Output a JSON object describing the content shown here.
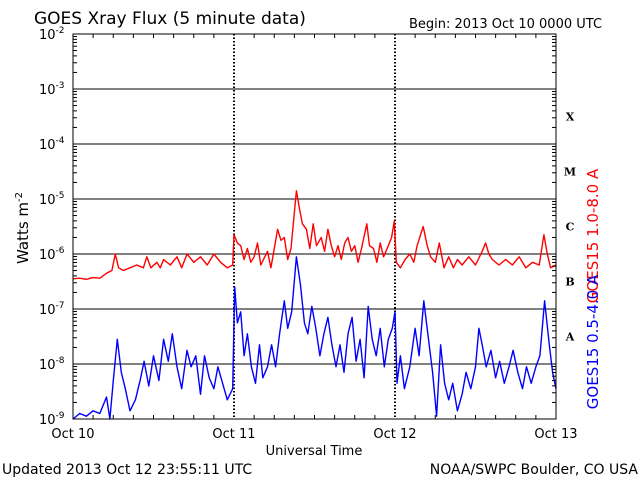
{
  "header": {
    "title": "GOES Xray Flux (5 minute data)",
    "begin": "Begin:  2013 Oct 10 0000 UTC"
  },
  "footer": {
    "updated": "Updated 2013 Oct 12 23:55:11 UTC",
    "credit": "NOAA/SWPC Boulder, CO USA"
  },
  "colors": {
    "long": "#ff0000",
    "short": "#0000ff",
    "grid": "#000000",
    "background": "#ffffff"
  },
  "chart_data": {
    "type": "line",
    "title": "GOES Xray Flux (5 minute data)",
    "xlabel": "Universal Time",
    "ylabel": "Watts m",
    "ylabel_sup": "-2",
    "yscale": "log",
    "ylim": [
      1e-09,
      0.01
    ],
    "xlim": [
      0,
      72
    ],
    "x_unit": "hours since 2013 Oct 10 0000 UTC",
    "y_ticks": [
      {
        "exp": -9,
        "label": "10",
        "sup": "-9"
      },
      {
        "exp": -8,
        "label": "10",
        "sup": "-8"
      },
      {
        "exp": -7,
        "label": "10",
        "sup": "-7"
      },
      {
        "exp": -6,
        "label": "10",
        "sup": "-6"
      },
      {
        "exp": -5,
        "label": "10",
        "sup": "-5"
      },
      {
        "exp": -4,
        "label": "10",
        "sup": "-4"
      },
      {
        "exp": -3,
        "label": "10",
        "sup": "-3"
      },
      {
        "exp": -2,
        "label": "10",
        "sup": "-2"
      }
    ],
    "x_ticks": [
      {
        "x": 0,
        "label": "Oct 10"
      },
      {
        "x": 24,
        "label": "Oct 11"
      },
      {
        "x": 48,
        "label": "Oct 12"
      },
      {
        "x": 72,
        "label": "Oct 13"
      }
    ],
    "flare_classes": [
      {
        "label": "X",
        "exp": -3.5
      },
      {
        "label": "M",
        "exp": -4.5
      },
      {
        "label": "C",
        "exp": -5.5
      },
      {
        "label": "B",
        "exp": -6.5
      },
      {
        "label": "A",
        "exp": -7.5
      }
    ],
    "grid": true,
    "series": [
      {
        "name": "GOES15 1.0-8.0 A",
        "color": "#ff0000",
        "points": [
          [
            0,
            -6.45
          ],
          [
            1,
            -6.44
          ],
          [
            2,
            -6.46
          ],
          [
            3,
            -6.43
          ],
          [
            4,
            -6.44
          ],
          [
            5,
            -6.35
          ],
          [
            5.8,
            -6.3
          ],
          [
            6.3,
            -6.0
          ],
          [
            6.8,
            -6.25
          ],
          [
            7.5,
            -6.3
          ],
          [
            8.5,
            -6.25
          ],
          [
            9.5,
            -6.2
          ],
          [
            10.5,
            -6.25
          ],
          [
            11,
            -6.05
          ],
          [
            11.6,
            -6.25
          ],
          [
            12.5,
            -6.15
          ],
          [
            13,
            -6.25
          ],
          [
            13.5,
            -6.1
          ],
          [
            14.5,
            -6.2
          ],
          [
            15.5,
            -6.05
          ],
          [
            16.2,
            -6.25
          ],
          [
            17,
            -6.0
          ],
          [
            18,
            -6.15
          ],
          [
            19,
            -6.05
          ],
          [
            20,
            -6.2
          ],
          [
            21,
            -6.0
          ],
          [
            22,
            -6.15
          ],
          [
            23,
            -6.25
          ],
          [
            23.8,
            -6.2
          ],
          [
            24,
            -5.65
          ],
          [
            24.5,
            -5.8
          ],
          [
            25,
            -5.85
          ],
          [
            25.5,
            -6.1
          ],
          [
            26,
            -5.9
          ],
          [
            26.5,
            -6.15
          ],
          [
            27,
            -6.05
          ],
          [
            27.5,
            -5.8
          ],
          [
            28,
            -6.2
          ],
          [
            29,
            -5.95
          ],
          [
            29.5,
            -6.25
          ],
          [
            30,
            -5.9
          ],
          [
            30.5,
            -5.55
          ],
          [
            31,
            -5.75
          ],
          [
            31.5,
            -5.7
          ],
          [
            32,
            -6.1
          ],
          [
            32.5,
            -5.9
          ],
          [
            33.3,
            -4.85
          ],
          [
            33.8,
            -5.2
          ],
          [
            34.2,
            -5.45
          ],
          [
            34.8,
            -5.55
          ],
          [
            35.3,
            -5.9
          ],
          [
            35.8,
            -5.45
          ],
          [
            36.3,
            -5.85
          ],
          [
            37,
            -5.7
          ],
          [
            37.5,
            -5.95
          ],
          [
            38,
            -5.55
          ],
          [
            38.5,
            -5.85
          ],
          [
            39,
            -6.05
          ],
          [
            39.5,
            -5.85
          ],
          [
            40,
            -6.1
          ],
          [
            40.5,
            -5.8
          ],
          [
            41,
            -5.7
          ],
          [
            41.5,
            -5.95
          ],
          [
            42,
            -5.85
          ],
          [
            42.5,
            -6.15
          ],
          [
            43,
            -5.9
          ],
          [
            43.8,
            -5.45
          ],
          [
            44.2,
            -5.85
          ],
          [
            44.8,
            -5.9
          ],
          [
            45.3,
            -6.15
          ],
          [
            45.8,
            -5.8
          ],
          [
            46.3,
            -6.05
          ],
          [
            47,
            -5.85
          ],
          [
            47.5,
            -5.7
          ],
          [
            47.9,
            -5.4
          ],
          [
            48.2,
            -6.15
          ],
          [
            48.8,
            -6.25
          ],
          [
            49.5,
            -6.1
          ],
          [
            50.2,
            -6.0
          ],
          [
            50.8,
            -6.15
          ],
          [
            51.3,
            -5.85
          ],
          [
            52.2,
            -5.5
          ],
          [
            52.8,
            -5.85
          ],
          [
            53.3,
            -6.05
          ],
          [
            54,
            -6.15
          ],
          [
            54.6,
            -5.8
          ],
          [
            55.3,
            -6.25
          ],
          [
            56,
            -6.05
          ],
          [
            56.7,
            -6.25
          ],
          [
            57.3,
            -6.1
          ],
          [
            58,
            -6.2
          ],
          [
            59,
            -6.05
          ],
          [
            60,
            -6.2
          ],
          [
            61,
            -5.95
          ],
          [
            61.5,
            -5.8
          ],
          [
            62,
            -6.0
          ],
          [
            62.5,
            -6.1
          ],
          [
            63.5,
            -6.2
          ],
          [
            64.5,
            -6.1
          ],
          [
            65.5,
            -6.2
          ],
          [
            66.5,
            -6.05
          ],
          [
            67.5,
            -6.25
          ],
          [
            68.5,
            -6.15
          ],
          [
            69.5,
            -6.2
          ],
          [
            70.2,
            -5.65
          ],
          [
            70.7,
            -6.0
          ],
          [
            71.2,
            -6.25
          ],
          [
            72,
            -6.2
          ]
        ]
      },
      {
        "name": "GOES15 0.5-4.0 A",
        "color": "#0000ff",
        "points": [
          [
            0,
            -9.0
          ],
          [
            1,
            -8.9
          ],
          [
            2,
            -8.95
          ],
          [
            3,
            -8.85
          ],
          [
            4,
            -8.9
          ],
          [
            5,
            -8.6
          ],
          [
            5.5,
            -9.0
          ],
          [
            6,
            -8.3
          ],
          [
            6.6,
            -7.55
          ],
          [
            7.2,
            -8.15
          ],
          [
            7.8,
            -8.45
          ],
          [
            8.5,
            -8.85
          ],
          [
            9.3,
            -8.65
          ],
          [
            10,
            -8.3
          ],
          [
            10.6,
            -7.95
          ],
          [
            11.3,
            -8.4
          ],
          [
            12,
            -7.85
          ],
          [
            12.8,
            -8.3
          ],
          [
            13.5,
            -7.55
          ],
          [
            14.2,
            -7.95
          ],
          [
            14.8,
            -7.45
          ],
          [
            15.5,
            -8.05
          ],
          [
            16.2,
            -8.45
          ],
          [
            17,
            -7.75
          ],
          [
            17.6,
            -8.05
          ],
          [
            18.3,
            -7.85
          ],
          [
            19,
            -8.55
          ],
          [
            19.6,
            -7.85
          ],
          [
            20.3,
            -8.25
          ],
          [
            21,
            -8.45
          ],
          [
            21.6,
            -8.05
          ],
          [
            22.3,
            -8.35
          ],
          [
            23,
            -8.65
          ],
          [
            23.8,
            -8.45
          ],
          [
            24.1,
            -6.6
          ],
          [
            24.5,
            -7.25
          ],
          [
            25,
            -7.05
          ],
          [
            25.5,
            -7.85
          ],
          [
            26,
            -7.45
          ],
          [
            26.6,
            -8.05
          ],
          [
            27.2,
            -8.35
          ],
          [
            27.8,
            -7.65
          ],
          [
            28.3,
            -8.25
          ],
          [
            29,
            -8.05
          ],
          [
            29.6,
            -7.65
          ],
          [
            30.2,
            -8.05
          ],
          [
            30.8,
            -7.45
          ],
          [
            31.5,
            -6.85
          ],
          [
            32,
            -7.35
          ],
          [
            32.6,
            -7.05
          ],
          [
            33.3,
            -6.05
          ],
          [
            33.9,
            -6.55
          ],
          [
            34.5,
            -7.25
          ],
          [
            35,
            -7.45
          ],
          [
            35.6,
            -6.95
          ],
          [
            36.2,
            -7.35
          ],
          [
            36.8,
            -7.85
          ],
          [
            37.4,
            -7.45
          ],
          [
            38,
            -7.15
          ],
          [
            38.6,
            -7.65
          ],
          [
            39.2,
            -8.05
          ],
          [
            39.8,
            -7.65
          ],
          [
            40.4,
            -8.15
          ],
          [
            41,
            -7.45
          ],
          [
            41.6,
            -7.15
          ],
          [
            42.2,
            -7.95
          ],
          [
            42.8,
            -7.55
          ],
          [
            43.4,
            -8.25
          ],
          [
            44,
            -6.95
          ],
          [
            44.6,
            -7.55
          ],
          [
            45.2,
            -7.85
          ],
          [
            45.8,
            -7.35
          ],
          [
            46.4,
            -8.05
          ],
          [
            47,
            -7.55
          ],
          [
            47.6,
            -7.35
          ],
          [
            48,
            -7.05
          ],
          [
            48.3,
            -8.35
          ],
          [
            48.8,
            -7.85
          ],
          [
            49.4,
            -8.45
          ],
          [
            50.2,
            -8.05
          ],
          [
            51,
            -7.35
          ],
          [
            51.6,
            -7.85
          ],
          [
            52.3,
            -6.85
          ],
          [
            53,
            -7.55
          ],
          [
            53.6,
            -8.15
          ],
          [
            54.2,
            -8.95
          ],
          [
            54.8,
            -7.65
          ],
          [
            55.4,
            -8.35
          ],
          [
            56,
            -8.65
          ],
          [
            56.6,
            -8.35
          ],
          [
            57.3,
            -8.85
          ],
          [
            58,
            -8.55
          ],
          [
            58.6,
            -8.15
          ],
          [
            59.3,
            -8.45
          ],
          [
            60,
            -8.05
          ],
          [
            60.5,
            -7.35
          ],
          [
            61,
            -7.65
          ],
          [
            61.6,
            -8.05
          ],
          [
            62.3,
            -7.75
          ],
          [
            63,
            -8.25
          ],
          [
            63.6,
            -7.95
          ],
          [
            64.3,
            -8.35
          ],
          [
            65,
            -8.05
          ],
          [
            65.6,
            -7.75
          ],
          [
            66.3,
            -8.15
          ],
          [
            67,
            -8.45
          ],
          [
            67.6,
            -8.05
          ],
          [
            68.3,
            -8.35
          ],
          [
            69,
            -8.05
          ],
          [
            69.6,
            -7.85
          ],
          [
            70.3,
            -6.85
          ],
          [
            71,
            -7.65
          ],
          [
            71.5,
            -8.15
          ],
          [
            72,
            -8.45
          ]
        ]
      }
    ]
  }
}
